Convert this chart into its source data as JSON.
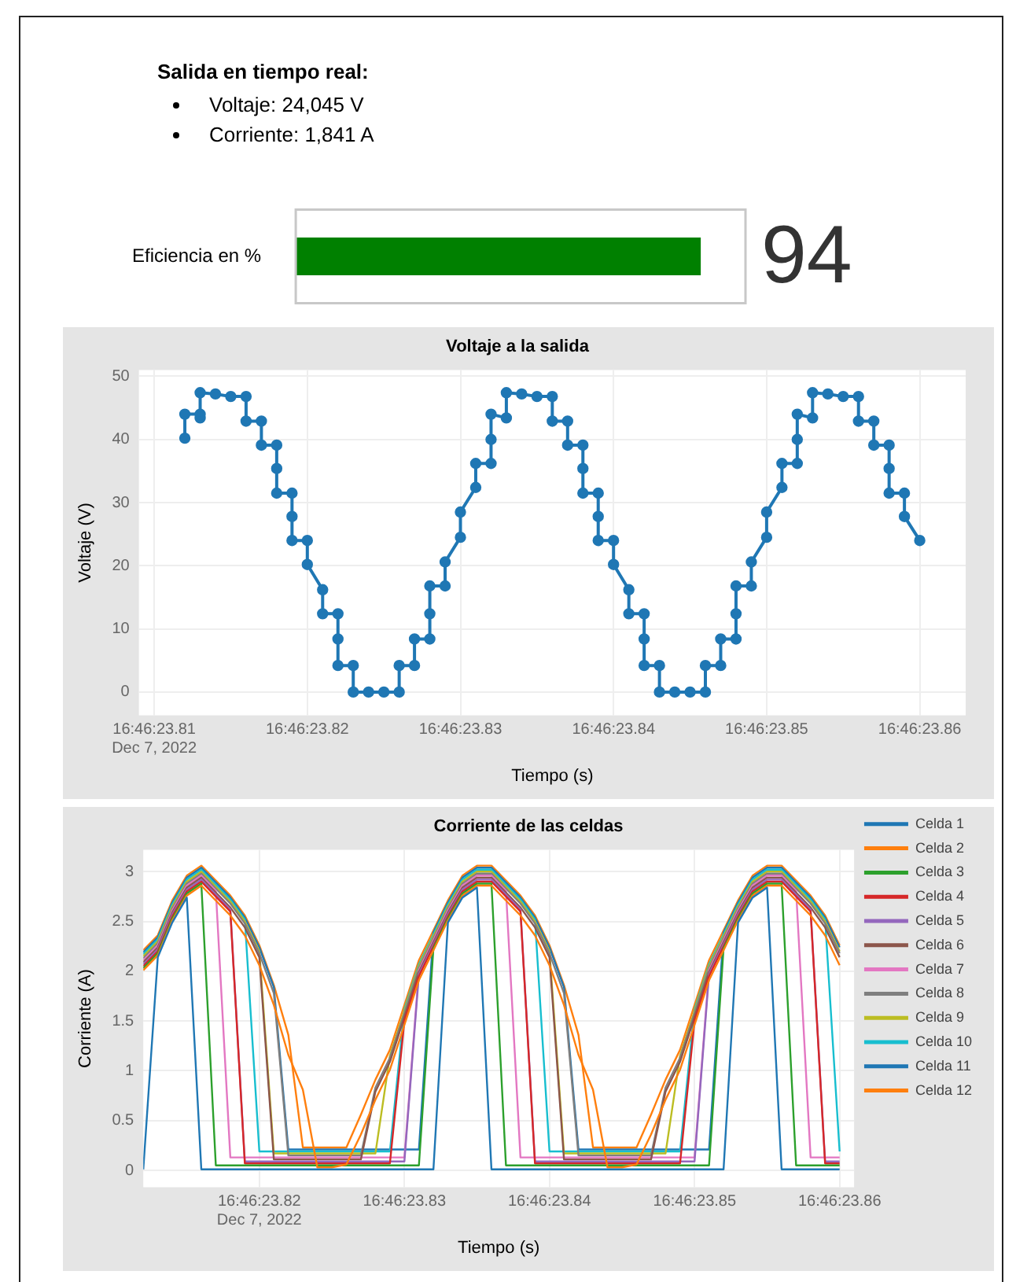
{
  "chart_data": [
    {
      "type": "other",
      "title": "Salida en tiempo real:",
      "annotations": [
        "Voltaje: 24,045 V",
        "Corriente: 1,841 A"
      ]
    },
    {
      "type": "bar",
      "orientation": "horizontal",
      "categories": [
        "Eficiencia en %"
      ],
      "values": [
        94
      ],
      "color": "#008000",
      "data_labels": true,
      "tick_labels": "y",
      "legend": false
    },
    {
      "type": "line",
      "title": "Voltaje a la salida",
      "xlabel": "Tiempo (s)",
      "ylabel": "Voltaje (V)",
      "marker": "circle",
      "grid": true,
      "legend": false,
      "xlim": [
        "2022-12-07T16:46:23.809",
        "2022-12-07T16:46:23.863"
      ],
      "ylim": [
        -3.7,
        51
      ],
      "xticks": [
        {
          "value": "2022-12-07T16:46:23.810",
          "label": "16:46:23.81\nDec 7, 2022"
        },
        {
          "value": "2022-12-07T16:46:23.820",
          "label": "16:46:23.82"
        },
        {
          "value": "2022-12-07T16:46:23.830",
          "label": "16:46:23.83"
        },
        {
          "value": "2022-12-07T16:46:23.840",
          "label": "16:46:23.84"
        },
        {
          "value": "2022-12-07T16:46:23.850",
          "label": "16:46:23.85"
        },
        {
          "value": "2022-12-07T16:46:23.860",
          "label": "16:46:23.86"
        }
      ],
      "yticks": [
        0,
        10,
        20,
        30,
        40,
        50
      ],
      "series": [
        {
          "color": "#1f77b4",
          "x": [
            "2022-12-07T16:46:23.812",
            "2022-12-07T16:46:23.812",
            "2022-12-07T16:46:23.813",
            "2022-12-07T16:46:23.813",
            "2022-12-07T16:46:23.814",
            "2022-12-07T16:46:23.815",
            "2022-12-07T16:46:23.816",
            "2022-12-07T16:46:23.816",
            "2022-12-07T16:46:23.817",
            "2022-12-07T16:46:23.817",
            "2022-12-07T16:46:23.818",
            "2022-12-07T16:46:23.818",
            "2022-12-07T16:46:23.819",
            "2022-12-07T16:46:23.819",
            "2022-12-07T16:46:23.820",
            "2022-12-07T16:46:23.820",
            "2022-12-07T16:46:23.821",
            "2022-12-07T16:46:23.821",
            "2022-12-07T16:46:23.822",
            "2022-12-07T16:46:23.822",
            "2022-12-07T16:46:23.823",
            "2022-12-07T16:46:23.823",
            "2022-12-07T16:46:23.824",
            "2022-12-07T16:46:23.825",
            "2022-12-07T16:46:23.826",
            "2022-12-07T16:46:23.826",
            "2022-12-07T16:46:23.827",
            "2022-12-07T16:46:23.827",
            "2022-12-07T16:46:23.828",
            "2022-12-07T16:46:23.828",
            "2022-12-07T16:46:23.829",
            "2022-12-07T16:46:23.829",
            "2022-12-07T16:46:23.830",
            "2022-12-07T16:46:23.830",
            "2022-12-07T16:46:23.831",
            "2022-12-07T16:46:23.831",
            "2022-12-07T16:46:23.832",
            "2022-12-07T16:46:23.832",
            "2022-12-07T16:46:23.833",
            "2022-12-07T16:46:23.833",
            "2022-12-07T16:46:23.834",
            "2022-12-07T16:46:23.835",
            "2022-12-07T16:46:23.836",
            "2022-12-07T16:46:23.836",
            "2022-12-07T16:46:23.837",
            "2022-12-07T16:46:23.837",
            "2022-12-07T16:46:23.838",
            "2022-12-07T16:46:23.838",
            "2022-12-07T16:46:23.839",
            "2022-12-07T16:46:23.839",
            "2022-12-07T16:46:23.840",
            "2022-12-07T16:46:23.840",
            "2022-12-07T16:46:23.841",
            "2022-12-07T16:46:23.841",
            "2022-12-07T16:46:23.842",
            "2022-12-07T16:46:23.842",
            "2022-12-07T16:46:23.843",
            "2022-12-07T16:46:23.843",
            "2022-12-07T16:46:23.844",
            "2022-12-07T16:46:23.845",
            "2022-12-07T16:46:23.846",
            "2022-12-07T16:46:23.846",
            "2022-12-07T16:46:23.847",
            "2022-12-07T16:46:23.847",
            "2022-12-07T16:46:23.848",
            "2022-12-07T16:46:23.848",
            "2022-12-07T16:46:23.849",
            "2022-12-07T16:46:23.849",
            "2022-12-07T16:46:23.850",
            "2022-12-07T16:46:23.850",
            "2022-12-07T16:46:23.851",
            "2022-12-07T16:46:23.851",
            "2022-12-07T16:46:23.852",
            "2022-12-07T16:46:23.852",
            "2022-12-07T16:46:23.853",
            "2022-12-07T16:46:23.853",
            "2022-12-07T16:46:23.854",
            "2022-12-07T16:46:23.855",
            "2022-12-07T16:46:23.856",
            "2022-12-07T16:46:23.856",
            "2022-12-07T16:46:23.857",
            "2022-12-07T16:46:23.857",
            "2022-12-07T16:46:23.858",
            "2022-12-07T16:46:23.858",
            "2022-12-07T16:46:23.859",
            "2022-12-07T16:46:23.859",
            "2022-12-07T16:46:23.860"
          ],
          "values": [
            40.2,
            44,
            44,
            47.4,
            47.2,
            46.8,
            46.8,
            42.9,
            42.9,
            39.1,
            39.1,
            31.5,
            31.5,
            24,
            24,
            20.2,
            16.2,
            12.4,
            12.4,
            4.2,
            4.2,
            0,
            0,
            0,
            0,
            4.2,
            4.2,
            8.4,
            8.4,
            16.8,
            16.8,
            20.6,
            24.5,
            28.5,
            32.4,
            36.2,
            36.2,
            44,
            43.4,
            47.4,
            47.2,
            46.8,
            46.8,
            42.9,
            42.9,
            39.1,
            39.1,
            31.5,
            31.5,
            24,
            24,
            20.2,
            16.2,
            12.4,
            12.4,
            4.2,
            4.2,
            0,
            0,
            0,
            0,
            4.2,
            4.2,
            8.4,
            8.4,
            16.8,
            16.8,
            20.6,
            24.5,
            28.5,
            32.4,
            36.2,
            36.2,
            44,
            43.4,
            47.4,
            47.2,
            46.8,
            46.8,
            42.9,
            42.9,
            39.1,
            39.1,
            31.5,
            31.5,
            27.8,
            24
          ]
        },
        {
          "type": "scatter",
          "color": "#1f77b4",
          "x": [
            "2022-12-07T16:46:23.813",
            "2022-12-07T16:46:23.818",
            "2022-12-07T16:46:23.819",
            "2022-12-07T16:46:23.822",
            "2022-12-07T16:46:23.828",
            "2022-12-07T16:46:23.832",
            "2022-12-07T16:46:23.838",
            "2022-12-07T16:46:23.839",
            "2022-12-07T16:46:23.842",
            "2022-12-07T16:46:23.848",
            "2022-12-07T16:46:23.852",
            "2022-12-07T16:46:23.858"
          ],
          "values": [
            43.4,
            35.4,
            27.8,
            8.4,
            12.4,
            40,
            35.4,
            27.8,
            8.4,
            12.4,
            40,
            35.4
          ]
        }
      ]
    },
    {
      "type": "line",
      "title": "Corriente de las celdas",
      "xlabel": "Tiempo (s)",
      "ylabel": "Corriente (A)",
      "grid": true,
      "legend": "right",
      "xlim": [
        "2022-12-07T16:46:23.812",
        "2022-12-07T16:46:23.861"
      ],
      "ylim": [
        -0.17,
        3.22
      ],
      "xticks": [
        {
          "value": "2022-12-07T16:46:23.820",
          "label": "16:46:23.82\nDec 7, 2022"
        },
        {
          "value": "2022-12-07T16:46:23.830",
          "label": "16:46:23.83"
        },
        {
          "value": "2022-12-07T16:46:23.840",
          "label": "16:46:23.84"
        },
        {
          "value": "2022-12-07T16:46:23.850",
          "label": "16:46:23.85"
        },
        {
          "value": "2022-12-07T16:46:23.860",
          "label": "16:46:23.86"
        }
      ],
      "yticks": [
        0,
        0.5,
        1,
        1.5,
        2,
        2.5,
        3
      ],
      "x": [
        "2022-12-07T16:46:23.812",
        "2022-12-07T16:46:23.813",
        "2022-12-07T16:46:23.814",
        "2022-12-07T16:46:23.815",
        "2022-12-07T16:46:23.816",
        "2022-12-07T16:46:23.817",
        "2022-12-07T16:46:23.818",
        "2022-12-07T16:46:23.819",
        "2022-12-07T16:46:23.820",
        "2022-12-07T16:46:23.821",
        "2022-12-07T16:46:23.822",
        "2022-12-07T16:46:23.823",
        "2022-12-07T16:46:23.824",
        "2022-12-07T16:46:23.825",
        "2022-12-07T16:46:23.826",
        "2022-12-07T16:46:23.827",
        "2022-12-07T16:46:23.828",
        "2022-12-07T16:46:23.829",
        "2022-12-07T16:46:23.830",
        "2022-12-07T16:46:23.831",
        "2022-12-07T16:46:23.832",
        "2022-12-07T16:46:23.833",
        "2022-12-07T16:46:23.834",
        "2022-12-07T16:46:23.835",
        "2022-12-07T16:46:23.836",
        "2022-12-07T16:46:23.837",
        "2022-12-07T16:46:23.838",
        "2022-12-07T16:46:23.839",
        "2022-12-07T16:46:23.840",
        "2022-12-07T16:46:23.841",
        "2022-12-07T16:46:23.842",
        "2022-12-07T16:46:23.843",
        "2022-12-07T16:46:23.844",
        "2022-12-07T16:46:23.845",
        "2022-12-07T16:46:23.846",
        "2022-12-07T16:46:23.847",
        "2022-12-07T16:46:23.848",
        "2022-12-07T16:46:23.849",
        "2022-12-07T16:46:23.850",
        "2022-12-07T16:46:23.851",
        "2022-12-07T16:46:23.852",
        "2022-12-07T16:46:23.853",
        "2022-12-07T16:46:23.854",
        "2022-12-07T16:46:23.855",
        "2022-12-07T16:46:23.856",
        "2022-12-07T16:46:23.857",
        "2022-12-07T16:46:23.858",
        "2022-12-07T16:46:23.859",
        "2022-12-07T16:46:23.860"
      ],
      "series": [
        {
          "name": "Celda 1",
          "color": "#1f77b4",
          "values": [
            0.01,
            2.14,
            2.49,
            2.74,
            0.01,
            0.01,
            0.01,
            0.01,
            0.01,
            0.01,
            0.01,
            0.01,
            0.01,
            0.01,
            0.01,
            0.01,
            0.01,
            0.01,
            0.01,
            0.01,
            0.01,
            2.49,
            2.74,
            2.84,
            0.01,
            0.01,
            0.01,
            0.01,
            0.01,
            0.01,
            0.01,
            0.01,
            0.01,
            0.01,
            0.01,
            0.01,
            0.01,
            0.01,
            0.01,
            0.01,
            0.01,
            2.49,
            2.74,
            2.84,
            0.01,
            0.01,
            0.01,
            0.01,
            0.01
          ]
        },
        {
          "name": "Celda 2",
          "color": "#ff7f0e",
          "values": [
            2.01,
            2.16,
            2.51,
            2.76,
            2.86,
            2.71,
            2.56,
            2.36,
            2.06,
            1.66,
            1.16,
            0.81,
            0.03,
            0.03,
            0.06,
            0.36,
            0.71,
            1.01,
            1.46,
            1.91,
            2.21,
            2.51,
            2.76,
            2.86,
            2.86,
            2.71,
            2.56,
            2.36,
            2.06,
            1.66,
            1.16,
            0.81,
            0.03,
            0.03,
            0.06,
            0.36,
            0.71,
            1.01,
            1.46,
            1.91,
            2.21,
            2.51,
            2.76,
            2.86,
            2.86,
            2.71,
            2.56,
            2.36,
            2.06
          ]
        },
        {
          "name": "Celda 3",
          "color": "#2ca02c",
          "values": [
            2.03,
            2.18,
            2.53,
            2.78,
            2.88,
            0.05,
            0.05,
            0.05,
            0.05,
            0.05,
            0.05,
            0.05,
            0.05,
            0.05,
            0.05,
            0.05,
            0.05,
            0.05,
            0.05,
            0.05,
            2.23,
            2.53,
            2.78,
            2.88,
            2.88,
            0.05,
            0.05,
            0.05,
            0.05,
            0.05,
            0.05,
            0.05,
            0.05,
            0.05,
            0.05,
            0.05,
            0.05,
            0.05,
            0.05,
            0.05,
            2.23,
            2.53,
            2.78,
            2.88,
            2.88,
            0.05,
            0.05,
            0.05,
            0.05
          ]
        },
        {
          "name": "Celda 4",
          "color": "#d62728",
          "values": [
            2.05,
            2.2,
            2.55,
            2.8,
            2.9,
            2.75,
            2.6,
            0.07,
            0.07,
            0.07,
            0.07,
            0.07,
            0.07,
            0.07,
            0.07,
            0.07,
            0.07,
            0.07,
            1.5,
            1.95,
            2.25,
            2.55,
            2.8,
            2.9,
            2.9,
            2.75,
            2.6,
            0.07,
            0.07,
            0.07,
            0.07,
            0.07,
            0.07,
            0.07,
            0.07,
            0.07,
            0.07,
            0.07,
            1.5,
            1.95,
            2.25,
            2.55,
            2.8,
            2.9,
            2.9,
            2.75,
            2.6,
            0.07,
            0.07
          ]
        },
        {
          "name": "Celda 5",
          "color": "#9467bd",
          "values": [
            2.07,
            2.22,
            2.57,
            2.82,
            2.92,
            2.77,
            2.62,
            0.09,
            0.09,
            0.09,
            0.09,
            0.09,
            0.09,
            0.09,
            0.09,
            0.09,
            0.09,
            0.09,
            0.09,
            1.97,
            2.27,
            2.57,
            2.82,
            2.92,
            2.92,
            2.77,
            2.62,
            0.09,
            0.09,
            0.09,
            0.09,
            0.09,
            0.09,
            0.09,
            0.09,
            0.09,
            0.09,
            0.09,
            0.09,
            1.97,
            2.27,
            2.57,
            2.82,
            2.92,
            2.92,
            2.77,
            2.62,
            0.09,
            0.09
          ]
        },
        {
          "name": "Celda 6",
          "color": "#8c564b",
          "values": [
            2.09,
            2.24,
            2.59,
            2.84,
            2.94,
            2.79,
            2.64,
            2.44,
            2.14,
            0.11,
            0.11,
            0.11,
            0.11,
            0.11,
            0.11,
            0.11,
            0.79,
            1.09,
            1.54,
            1.99,
            2.29,
            2.59,
            2.84,
            2.94,
            2.94,
            2.79,
            2.64,
            2.44,
            2.14,
            0.11,
            0.11,
            0.11,
            0.11,
            0.11,
            0.11,
            0.11,
            0.79,
            1.09,
            1.54,
            1.99,
            2.29,
            2.59,
            2.84,
            2.94,
            2.94,
            2.79,
            2.64,
            2.44,
            2.14
          ]
        },
        {
          "name": "Celda 7",
          "color": "#e377c2",
          "values": [
            2.11,
            2.26,
            2.61,
            2.86,
            2.96,
            2.81,
            0.13,
            0.13,
            0.13,
            0.13,
            0.13,
            0.13,
            0.13,
            0.13,
            0.13,
            0.13,
            0.13,
            0.13,
            0.13,
            2.01,
            2.31,
            2.61,
            2.86,
            2.96,
            2.96,
            2.81,
            0.13,
            0.13,
            0.13,
            0.13,
            0.13,
            0.13,
            0.13,
            0.13,
            0.13,
            0.13,
            0.13,
            0.13,
            0.13,
            2.01,
            2.31,
            2.61,
            2.86,
            2.96,
            2.96,
            2.81,
            0.13,
            0.13,
            0.13
          ]
        },
        {
          "name": "Celda 8",
          "color": "#7f7f7f",
          "values": [
            2.13,
            2.28,
            2.63,
            2.88,
            2.98,
            2.83,
            2.68,
            2.48,
            2.18,
            1.78,
            0.15,
            0.15,
            0.15,
            0.15,
            0.15,
            0.15,
            0.83,
            1.13,
            1.58,
            2.03,
            2.33,
            2.63,
            2.88,
            2.98,
            2.98,
            2.83,
            2.68,
            2.48,
            2.18,
            1.78,
            0.15,
            0.15,
            0.15,
            0.15,
            0.15,
            0.15,
            0.83,
            1.13,
            1.58,
            2.03,
            2.33,
            2.63,
            2.88,
            2.98,
            2.98,
            2.83,
            2.68,
            2.48,
            2.18
          ]
        },
        {
          "name": "Celda 9",
          "color": "#bcbd22",
          "values": [
            2.15,
            2.3,
            2.65,
            2.9,
            3.0,
            2.85,
            2.7,
            2.5,
            2.2,
            0.17,
            0.17,
            0.17,
            0.17,
            0.17,
            0.17,
            0.17,
            0.17,
            1.15,
            1.6,
            2.05,
            2.35,
            2.65,
            2.9,
            3.0,
            3.0,
            2.85,
            2.7,
            2.5,
            2.2,
            0.17,
            0.17,
            0.17,
            0.17,
            0.17,
            0.17,
            0.17,
            0.17,
            1.15,
            1.6,
            2.05,
            2.35,
            2.65,
            2.9,
            3.0,
            3.0,
            2.85,
            2.7,
            2.5,
            2.2
          ]
        },
        {
          "name": "Celda 10",
          "color": "#17becf",
          "values": [
            2.17,
            2.32,
            2.67,
            2.92,
            3.02,
            2.87,
            2.72,
            2.52,
            0.19,
            0.19,
            0.19,
            0.19,
            0.19,
            0.19,
            0.19,
            0.19,
            0.19,
            0.19,
            1.62,
            2.07,
            2.37,
            2.67,
            2.92,
            3.02,
            3.02,
            2.87,
            2.72,
            2.52,
            0.19,
            0.19,
            0.19,
            0.19,
            0.19,
            0.19,
            0.19,
            0.19,
            0.19,
            0.19,
            1.62,
            2.07,
            2.37,
            2.67,
            2.92,
            3.02,
            3.02,
            2.87,
            2.72,
            2.52,
            0.19
          ]
        },
        {
          "name": "Celda 11",
          "color": "#1f77b4",
          "values": [
            2.19,
            2.34,
            2.69,
            2.94,
            3.04,
            2.89,
            2.74,
            2.54,
            2.24,
            1.84,
            0.21,
            0.21,
            0.21,
            0.21,
            0.21,
            0.21,
            0.21,
            0.21,
            0.21,
            0.21,
            2.39,
            2.69,
            2.94,
            3.04,
            3.04,
            2.89,
            2.74,
            2.54,
            2.24,
            1.84,
            0.21,
            0.21,
            0.21,
            0.21,
            0.21,
            0.21,
            0.21,
            0.21,
            0.21,
            0.21,
            2.39,
            2.69,
            2.94,
            3.04,
            3.04,
            2.89,
            2.74,
            2.54,
            2.24
          ]
        },
        {
          "name": "Celda 12",
          "color": "#ff7f0e",
          "values": [
            2.21,
            2.36,
            2.71,
            2.96,
            3.06,
            2.91,
            2.76,
            2.56,
            2.26,
            1.86,
            1.36,
            0.23,
            0.23,
            0.23,
            0.23,
            0.56,
            0.91,
            1.21,
            1.66,
            2.11,
            2.41,
            2.71,
            2.96,
            3.06,
            3.06,
            2.91,
            2.76,
            2.56,
            2.26,
            1.86,
            1.36,
            0.23,
            0.23,
            0.23,
            0.23,
            0.56,
            0.91,
            1.21,
            1.66,
            2.11,
            2.41,
            2.71,
            2.96,
            3.06,
            3.06,
            2.91,
            2.76,
            2.56,
            2.26
          ]
        }
      ]
    }
  ]
}
